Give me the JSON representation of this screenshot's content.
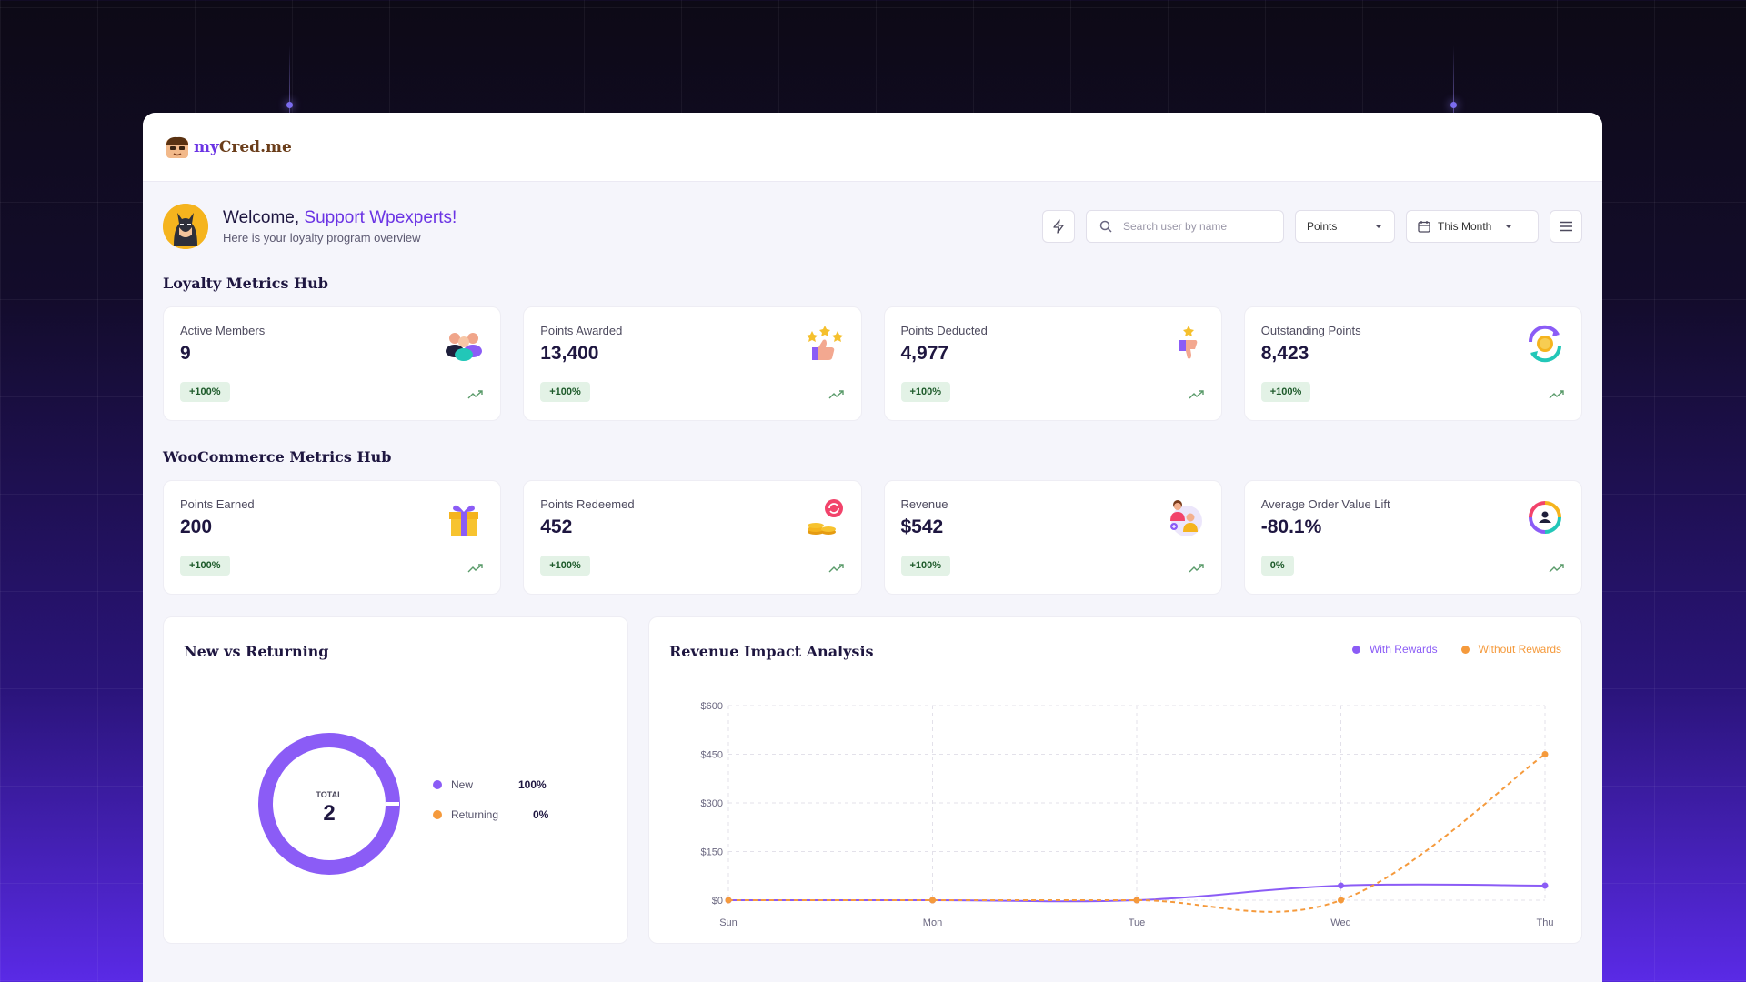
{
  "brand": {
    "logo_text_a": "my",
    "logo_text_b": "Cred.me"
  },
  "header": {
    "welcome_prefix": "Welcome,",
    "user_name": "Support Wpexperts!",
    "subtitle": "Here is your loyalty program overview",
    "search_placeholder": "Search user by name",
    "points_select": "Points",
    "period_select": "This Month"
  },
  "loyalty": {
    "title": "Loyalty Metrics Hub",
    "cards": [
      {
        "label": "Active Members",
        "value": "9",
        "badge": "+100%",
        "icon": "users-group-icon"
      },
      {
        "label": "Points Awarded",
        "value": "13,400",
        "badge": "+100%",
        "icon": "thumbs-up-stars-icon"
      },
      {
        "label": "Points Deducted",
        "value": "4,977",
        "badge": "+100%",
        "icon": "thumbs-down-star-icon"
      },
      {
        "label": "Outstanding Points",
        "value": "8,423",
        "badge": "+100%",
        "icon": "coin-cycle-icon"
      }
    ]
  },
  "woo": {
    "title": "WooCommerce Metrics Hub",
    "cards": [
      {
        "label": "Points Earned",
        "value": "200",
        "badge": "+100%",
        "icon": "gift-box-icon"
      },
      {
        "label": "Points Redeemed",
        "value": "452",
        "badge": "+100%",
        "icon": "coins-refresh-icon"
      },
      {
        "label": "Revenue",
        "value": "$542",
        "badge": "+100%",
        "icon": "revenue-people-icon"
      },
      {
        "label": "Average Order Value Lift",
        "value": "-80.1%",
        "badge": "0%",
        "icon": "target-cycle-icon"
      }
    ]
  },
  "new_vs_returning": {
    "title": "New vs Returning",
    "total_label": "TOTAL",
    "total_value": "2",
    "legend": [
      {
        "name": "New",
        "value": "100%",
        "color": "#8b5cf6"
      },
      {
        "name": "Returning",
        "value": "0%",
        "color": "#f59a3c"
      }
    ]
  },
  "chart_data": {
    "type": "line",
    "title": "Revenue Impact Analysis",
    "categories": [
      "Sun",
      "Mon",
      "Tue",
      "Wed",
      "Thu"
    ],
    "y_ticks": [
      "$0",
      "$150",
      "$300",
      "$450",
      "$600"
    ],
    "ylim": [
      0,
      600
    ],
    "grid": true,
    "legend_placement": "top-right",
    "series": [
      {
        "name": "With Rewards",
        "color": "#8b5cf6",
        "dashed": false,
        "values": [
          0,
          0,
          0,
          45,
          45
        ]
      },
      {
        "name": "Without Rewards",
        "color": "#f59a3c",
        "dashed": true,
        "values": [
          0,
          0,
          0,
          0,
          450
        ]
      }
    ]
  }
}
